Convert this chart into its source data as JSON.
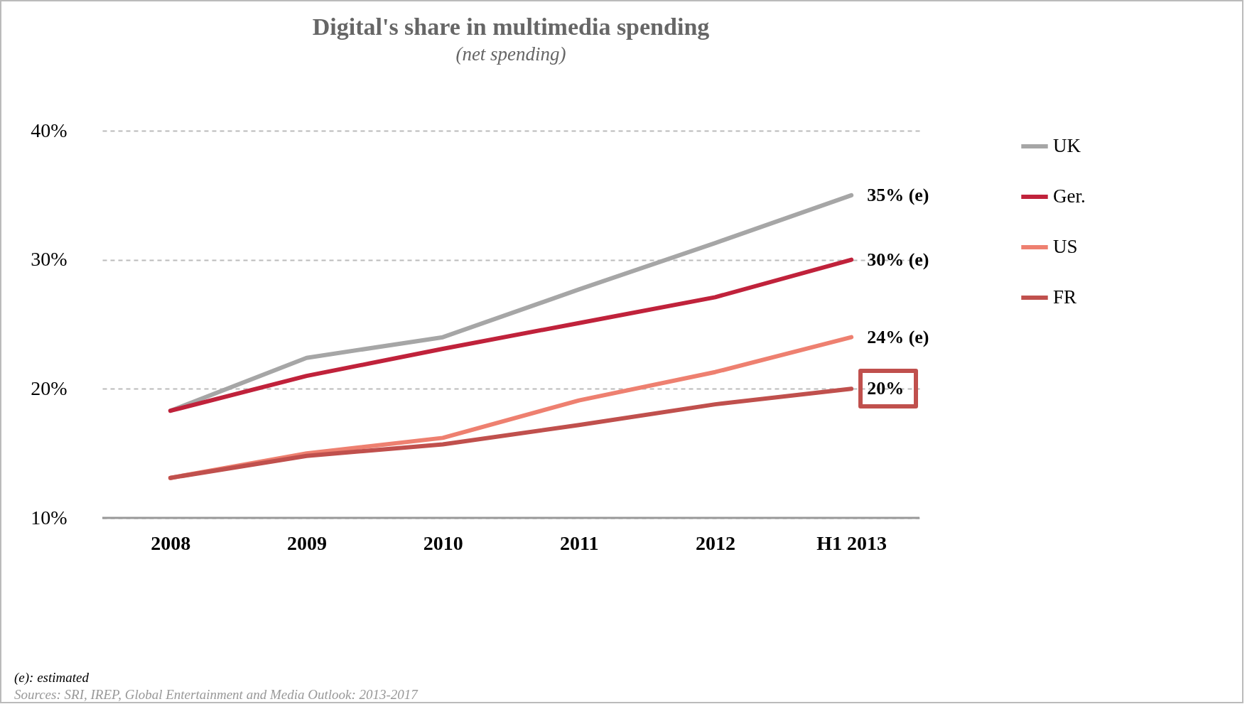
{
  "chart_data": {
    "type": "line",
    "title": "Digital's share in multimedia spending",
    "subtitle": "(net spending)",
    "categories": [
      "2008",
      "2009",
      "2010",
      "2011",
      "2012",
      "H1 2013"
    ],
    "series": [
      {
        "name": "UK",
        "color": "#a6a6a6",
        "values": [
          18.3,
          22.4,
          24.0,
          27.7,
          31.3,
          35
        ],
        "value_labels": [
          null,
          null,
          null,
          null,
          null,
          "35% (e)"
        ]
      },
      {
        "name": "Ger.",
        "color": "#c0223b",
        "values": [
          18.3,
          21.0,
          23.1,
          25.1,
          27.1,
          30
        ],
        "value_labels": [
          null,
          null,
          null,
          null,
          null,
          "30% (e)"
        ]
      },
      {
        "name": "US",
        "color": "#ee8070",
        "values": [
          13.1,
          15.0,
          16.2,
          19.1,
          21.3,
          24
        ],
        "value_labels": [
          null,
          null,
          null,
          null,
          null,
          "24% (e)"
        ]
      },
      {
        "name": "FR",
        "color": "#c0504d",
        "values": [
          13.1,
          14.8,
          15.7,
          17.2,
          18.8,
          20
        ],
        "value_labels": [
          null,
          null,
          null,
          null,
          null,
          "20%"
        ]
      }
    ],
    "ylim": [
      10,
      40
    ],
    "yticks": [
      {
        "value": 10,
        "label": "10%"
      },
      {
        "value": 20,
        "label": "20%"
      },
      {
        "value": 30,
        "label": "30%"
      },
      {
        "value": 40,
        "label": "40%"
      }
    ],
    "grid": "y",
    "legend": "right",
    "marker": "none",
    "line_style": "solid",
    "annotations": [
      "(e): estimated",
      "Sources: SRI, IREP, Global Entertainment and Media Outlook: 2013-2017"
    ]
  }
}
